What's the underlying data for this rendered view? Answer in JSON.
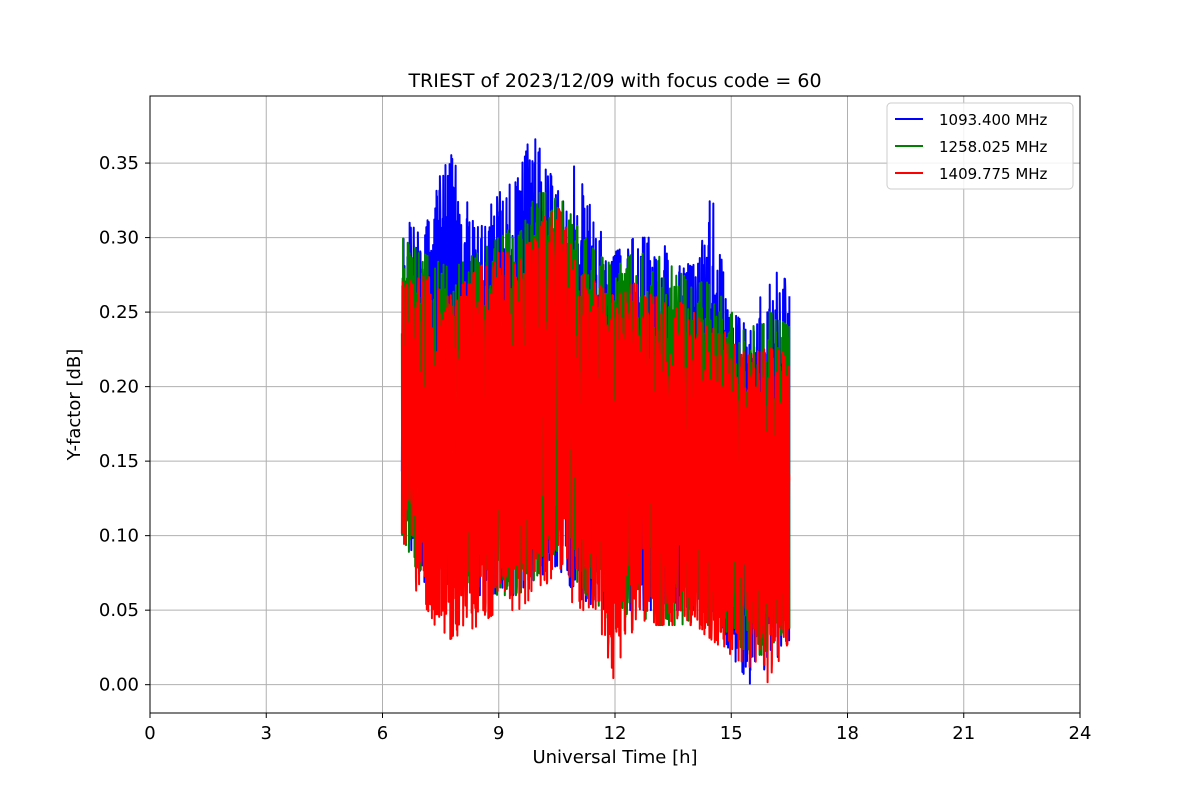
{
  "chart_data": {
    "type": "line",
    "title": "TRIEST of 2023/12/09 with focus code = 60",
    "xlabel": "Universal Time [h]",
    "ylabel": "Y-factor [dB]",
    "xlim": [
      0,
      24
    ],
    "ylim": [
      -0.019,
      0.395
    ],
    "xticks": [
      0,
      3,
      6,
      9,
      12,
      15,
      18,
      21,
      24
    ],
    "xtick_labels": [
      "0",
      "3",
      "6",
      "9",
      "12",
      "15",
      "18",
      "21",
      "24"
    ],
    "yticks": [
      0.0,
      0.05,
      0.1,
      0.15,
      0.2,
      0.25,
      0.3,
      0.35
    ],
    "ytick_labels": [
      "0.00",
      "0.05",
      "0.10",
      "0.15",
      "0.20",
      "0.25",
      "0.30",
      "0.35"
    ],
    "grid": true,
    "legend_position": "top-right",
    "series": [
      {
        "name": "1093.400 MHz",
        "color": "#0000ff",
        "envelope": {
          "x": [
            6.5,
            7.0,
            7.7,
            8.5,
            9.0,
            9.5,
            9.9,
            10.5,
            11.0,
            11.5,
            12.0,
            12.5,
            13.0,
            13.5,
            14.0,
            14.5,
            15.0,
            15.5,
            16.0,
            16.5
          ],
          "upper": [
            0.32,
            0.3,
            0.36,
            0.31,
            0.33,
            0.34,
            0.377,
            0.33,
            0.35,
            0.31,
            0.29,
            0.3,
            0.3,
            0.29,
            0.28,
            0.33,
            0.25,
            0.24,
            0.28,
            0.27
          ],
          "lower": [
            0.1,
            0.07,
            0.06,
            0.06,
            0.06,
            0.06,
            0.07,
            0.08,
            0.06,
            0.05,
            0.05,
            0.05,
            0.05,
            0.05,
            0.05,
            0.05,
            0.02,
            0.0,
            0.01,
            0.03
          ]
        }
      },
      {
        "name": "1258.025 MHz",
        "color": "#008000",
        "envelope": {
          "x": [
            6.5,
            7.0,
            7.7,
            8.5,
            9.0,
            9.5,
            9.9,
            10.5,
            11.0,
            11.5,
            12.0,
            12.5,
            13.0,
            13.5,
            14.0,
            14.5,
            15.0,
            15.5,
            16.0,
            16.5
          ],
          "upper": [
            0.3,
            0.29,
            0.28,
            0.29,
            0.3,
            0.31,
            0.33,
            0.33,
            0.31,
            0.29,
            0.28,
            0.29,
            0.29,
            0.28,
            0.27,
            0.27,
            0.25,
            0.24,
            0.25,
            0.24
          ],
          "lower": [
            0.1,
            0.07,
            0.06,
            0.06,
            0.06,
            0.06,
            0.07,
            0.09,
            0.07,
            0.05,
            0.04,
            0.05,
            0.04,
            0.04,
            0.04,
            0.04,
            0.03,
            0.02,
            0.02,
            0.03
          ]
        }
      },
      {
        "name": "1409.775 MHz",
        "color": "#ff0000",
        "envelope": {
          "x": [
            6.5,
            7.0,
            7.7,
            8.5,
            9.0,
            9.5,
            9.9,
            10.5,
            11.0,
            11.5,
            12.0,
            12.5,
            13.0,
            13.5,
            14.0,
            14.5,
            15.0,
            15.5,
            16.0,
            16.5
          ],
          "upper": [
            0.27,
            0.28,
            0.26,
            0.28,
            0.29,
            0.29,
            0.3,
            0.33,
            0.28,
            0.27,
            0.26,
            0.27,
            0.26,
            0.26,
            0.25,
            0.25,
            0.23,
            0.22,
            0.23,
            0.22
          ],
          "lower": [
            0.1,
            0.05,
            0.03,
            0.04,
            0.05,
            0.05,
            0.06,
            0.07,
            0.05,
            0.05,
            0.0,
            0.04,
            0.04,
            0.04,
            0.04,
            0.03,
            0.02,
            0.01,
            0.0,
            0.03
          ]
        }
      }
    ]
  }
}
